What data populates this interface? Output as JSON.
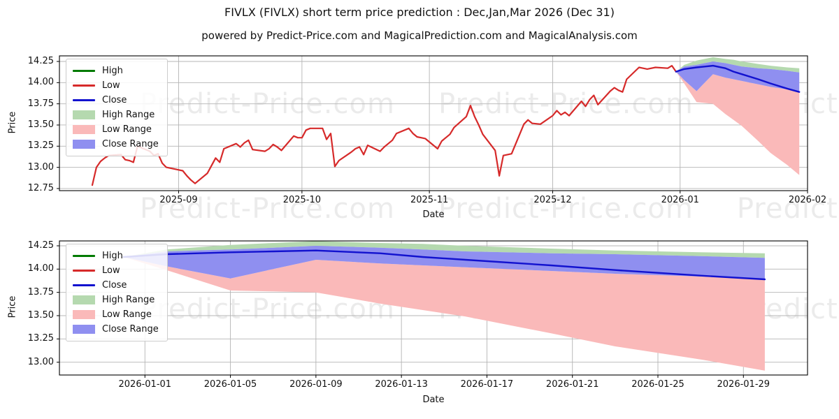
{
  "header": {
    "title": "FIVLX (FIVLX) short term price prediction : Dec,Jan,Mar 2026 (Dec 31)",
    "subtitle": "powered by Predict-Price.com and MagicalPrediction.com and MagicalAnalysis.com"
  },
  "watermark": {
    "text": "Predict-Price.com"
  },
  "colors": {
    "high_line": "#007a00",
    "low_line": "#d62a2a",
    "close_line": "#1212cf",
    "high_range": "#b5d9af",
    "low_range": "#fab9b9",
    "close_range": "#8f8ff0",
    "grid": "#b4b4b4",
    "frame": "#000000"
  },
  "legend": {
    "items": [
      {
        "label": "High",
        "kind": "line",
        "color": "#007a00"
      },
      {
        "label": "Low",
        "kind": "line",
        "color": "#d62a2a"
      },
      {
        "label": "Close",
        "kind": "line",
        "color": "#1212cf"
      },
      {
        "label": "High Range",
        "kind": "patch",
        "color": "#b5d9af"
      },
      {
        "label": "Low Range",
        "kind": "patch",
        "color": "#fab9b9"
      },
      {
        "label": "Close Range",
        "kind": "patch",
        "color": "#8f8ff0"
      }
    ]
  },
  "chart_data": [
    {
      "id": "overview",
      "type": "line",
      "xlabel": "Date",
      "ylabel": "Price",
      "grid": true,
      "legend_position": "upper left",
      "xlim": [
        "2025-08-03",
        "2026-02-01"
      ],
      "ylim": [
        12.725,
        14.316
      ],
      "x_ticks": [
        {
          "pos": "2025-09-01",
          "label": "2025-09"
        },
        {
          "pos": "2025-10-01",
          "label": "2025-10"
        },
        {
          "pos": "2025-11-01",
          "label": "2025-11"
        },
        {
          "pos": "2025-12-01",
          "label": "2025-12"
        },
        {
          "pos": "2026-01-01",
          "label": "2026-01"
        },
        {
          "pos": "2026-02-01",
          "label": "2026-02"
        }
      ],
      "y_ticks": [
        12.75,
        13.0,
        13.25,
        13.5,
        13.75,
        14.0,
        14.25
      ],
      "series": [
        {
          "name": "Low",
          "color": "#d62a2a",
          "width": 2.2,
          "dates": [
            "2025-08-11",
            "2025-08-12",
            "2025-08-13",
            "2025-08-14",
            "2025-08-15",
            "2025-08-18",
            "2025-08-19",
            "2025-08-20",
            "2025-08-21",
            "2025-08-22",
            "2025-08-25",
            "2025-08-26",
            "2025-08-27",
            "2025-08-28",
            "2025-08-29",
            "2025-09-02",
            "2025-09-03",
            "2025-09-04",
            "2025-09-05",
            "2025-09-08",
            "2025-09-09",
            "2025-09-10",
            "2025-09-11",
            "2025-09-12",
            "2025-09-15",
            "2025-09-16",
            "2025-09-17",
            "2025-09-18",
            "2025-09-19",
            "2025-09-22",
            "2025-09-23",
            "2025-09-24",
            "2025-09-25",
            "2025-09-26",
            "2025-09-29",
            "2025-09-30",
            "2025-10-01",
            "2025-10-02",
            "2025-10-03",
            "2025-10-06",
            "2025-10-07",
            "2025-10-08",
            "2025-10-09",
            "2025-10-10",
            "2025-10-13",
            "2025-10-14",
            "2025-10-15",
            "2025-10-16",
            "2025-10-17",
            "2025-10-20",
            "2025-10-21",
            "2025-10-22",
            "2025-10-23",
            "2025-10-24",
            "2025-10-27",
            "2025-10-28",
            "2025-10-29",
            "2025-10-30",
            "2025-10-31",
            "2025-11-03",
            "2025-11-04",
            "2025-11-05",
            "2025-11-06",
            "2025-11-07",
            "2025-11-10",
            "2025-11-11",
            "2025-11-12",
            "2025-11-13",
            "2025-11-14",
            "2025-11-17",
            "2025-11-18",
            "2025-11-19",
            "2025-11-20",
            "2025-11-21",
            "2025-11-24",
            "2025-11-25",
            "2025-11-26",
            "2025-11-28",
            "2025-12-01",
            "2025-12-02",
            "2025-12-03",
            "2025-12-04",
            "2025-12-05",
            "2025-12-08",
            "2025-12-09",
            "2025-12-10",
            "2025-12-11",
            "2025-12-12",
            "2025-12-15",
            "2025-12-16",
            "2025-12-17",
            "2025-12-18",
            "2025-12-19",
            "2025-12-22",
            "2025-12-23",
            "2025-12-24",
            "2025-12-26",
            "2025-12-29",
            "2025-12-30",
            "2025-12-31"
          ],
          "values": [
            12.79,
            13.0,
            13.07,
            13.11,
            13.14,
            13.15,
            13.09,
            13.08,
            13.06,
            13.25,
            13.19,
            13.14,
            13.16,
            13.05,
            13.0,
            12.96,
            12.9,
            12.85,
            12.81,
            12.93,
            13.02,
            13.11,
            13.06,
            13.22,
            13.28,
            13.24,
            13.29,
            13.32,
            13.21,
            13.19,
            13.22,
            13.27,
            13.24,
            13.2,
            13.37,
            13.35,
            13.35,
            13.44,
            13.46,
            13.46,
            13.33,
            13.4,
            13.01,
            13.08,
            13.18,
            13.22,
            13.24,
            13.15,
            13.26,
            13.19,
            13.24,
            13.28,
            13.32,
            13.4,
            13.46,
            13.4,
            13.36,
            13.35,
            13.34,
            13.22,
            13.31,
            13.35,
            13.39,
            13.47,
            13.6,
            13.73,
            13.6,
            13.5,
            13.39,
            13.2,
            12.9,
            13.14,
            13.15,
            13.16,
            13.51,
            13.56,
            13.52,
            13.51,
            13.61,
            13.67,
            13.62,
            13.65,
            13.61,
            13.78,
            13.72,
            13.8,
            13.85,
            13.74,
            13.9,
            13.94,
            13.91,
            13.89,
            14.04,
            14.18,
            14.17,
            14.16,
            14.18,
            14.17,
            14.2,
            14.13
          ]
        },
        {
          "name": "Close",
          "color": "#1212cf",
          "width": 2.4,
          "dates": [
            "2025-12-31",
            "2026-01-02",
            "2026-01-05",
            "2026-01-07",
            "2026-01-09",
            "2026-01-12",
            "2026-01-14",
            "2026-01-16",
            "2026-01-20",
            "2026-01-23",
            "2026-01-27",
            "2026-01-30"
          ],
          "values": [
            14.13,
            14.16,
            14.18,
            14.19,
            14.2,
            14.17,
            14.13,
            14.1,
            14.04,
            13.99,
            13.93,
            13.89
          ]
        }
      ],
      "bands": [
        {
          "name": "High Range",
          "color": "#b5d9af",
          "dates": [
            "2025-12-31",
            "2026-01-02",
            "2026-01-05",
            "2026-01-07",
            "2026-01-09",
            "2026-01-12",
            "2026-01-14",
            "2026-01-16",
            "2026-01-20",
            "2026-01-23",
            "2026-01-27",
            "2026-01-30"
          ],
          "upper": [
            14.13,
            14.21,
            14.26,
            14.28,
            14.3,
            14.28,
            14.27,
            14.25,
            14.22,
            14.2,
            14.18,
            14.17
          ],
          "lower": [
            14.13,
            14.19,
            14.21,
            14.23,
            14.25,
            14.23,
            14.21,
            14.19,
            14.17,
            14.16,
            14.14,
            14.12
          ]
        },
        {
          "name": "Low Range",
          "color": "#fab9b9",
          "dates": [
            "2025-12-31",
            "2026-01-02",
            "2026-01-05",
            "2026-01-07",
            "2026-01-09",
            "2026-01-12",
            "2026-01-14",
            "2026-01-16",
            "2026-01-20",
            "2026-01-23",
            "2026-01-27",
            "2026-01-30"
          ],
          "upper": [
            14.13,
            14.03,
            13.9,
            14.0,
            14.1,
            14.06,
            14.04,
            14.02,
            13.98,
            13.95,
            13.92,
            13.89
          ],
          "lower": [
            14.13,
            13.99,
            13.77,
            13.76,
            13.75,
            13.63,
            13.56,
            13.49,
            13.31,
            13.17,
            13.03,
            12.91
          ]
        },
        {
          "name": "Close Range",
          "color": "#8f8ff0",
          "dates": [
            "2025-12-31",
            "2026-01-02",
            "2026-01-05",
            "2026-01-07",
            "2026-01-09",
            "2026-01-12",
            "2026-01-14",
            "2026-01-16",
            "2026-01-20",
            "2026-01-23",
            "2026-01-27",
            "2026-01-30"
          ],
          "upper": [
            14.13,
            14.19,
            14.21,
            14.23,
            14.25,
            14.23,
            14.21,
            14.19,
            14.17,
            14.16,
            14.14,
            14.12
          ],
          "lower": [
            14.13,
            14.03,
            13.9,
            14.0,
            14.1,
            14.06,
            14.04,
            14.02,
            13.98,
            13.95,
            13.92,
            13.89
          ]
        }
      ]
    },
    {
      "id": "forecast-detail",
      "type": "line",
      "xlabel": "Date",
      "ylabel": "Price",
      "grid": true,
      "legend_position": "upper left",
      "xlim": [
        "2025-12-28",
        "2026-02-01"
      ],
      "ylim": [
        12.8625,
        14.3025
      ],
      "x_ticks": [
        {
          "pos": "2026-01-01",
          "label": "2026-01-01"
        },
        {
          "pos": "2026-01-05",
          "label": "2026-01-05"
        },
        {
          "pos": "2026-01-09",
          "label": "2026-01-09"
        },
        {
          "pos": "2026-01-13",
          "label": "2026-01-13"
        },
        {
          "pos": "2026-01-17",
          "label": "2026-01-17"
        },
        {
          "pos": "2026-01-21",
          "label": "2026-01-21"
        },
        {
          "pos": "2026-01-25",
          "label": "2026-01-25"
        },
        {
          "pos": "2026-01-29",
          "label": "2026-01-29"
        }
      ],
      "y_ticks": [
        13.0,
        13.25,
        13.5,
        13.75,
        14.0,
        14.25
      ],
      "series": [
        {
          "name": "Close",
          "color": "#1212cf",
          "width": 2.4,
          "dates": [
            "2025-12-31",
            "2026-01-02",
            "2026-01-05",
            "2026-01-07",
            "2026-01-09",
            "2026-01-12",
            "2026-01-14",
            "2026-01-16",
            "2026-01-20",
            "2026-01-23",
            "2026-01-27",
            "2026-01-30"
          ],
          "values": [
            14.13,
            14.16,
            14.18,
            14.19,
            14.2,
            14.17,
            14.13,
            14.1,
            14.04,
            13.99,
            13.93,
            13.89
          ]
        }
      ],
      "bands": [
        {
          "name": "High Range",
          "color": "#b5d9af",
          "dates": [
            "2025-12-31",
            "2026-01-02",
            "2026-01-05",
            "2026-01-07",
            "2026-01-09",
            "2026-01-12",
            "2026-01-14",
            "2026-01-16",
            "2026-01-20",
            "2026-01-23",
            "2026-01-27",
            "2026-01-30"
          ],
          "upper": [
            14.13,
            14.21,
            14.26,
            14.28,
            14.3,
            14.28,
            14.27,
            14.25,
            14.22,
            14.2,
            14.18,
            14.17
          ],
          "lower": [
            14.13,
            14.19,
            14.21,
            14.23,
            14.25,
            14.23,
            14.21,
            14.19,
            14.17,
            14.16,
            14.14,
            14.12
          ]
        },
        {
          "name": "Low Range",
          "color": "#fab9b9",
          "dates": [
            "2025-12-31",
            "2026-01-02",
            "2026-01-05",
            "2026-01-07",
            "2026-01-09",
            "2026-01-12",
            "2026-01-14",
            "2026-01-16",
            "2026-01-20",
            "2026-01-23",
            "2026-01-27",
            "2026-01-30"
          ],
          "upper": [
            14.13,
            14.03,
            13.9,
            14.0,
            14.1,
            14.06,
            14.04,
            14.02,
            13.98,
            13.95,
            13.92,
            13.89
          ],
          "lower": [
            14.13,
            13.99,
            13.77,
            13.76,
            13.75,
            13.63,
            13.56,
            13.49,
            13.31,
            13.17,
            13.03,
            12.91
          ]
        },
        {
          "name": "Close Range",
          "color": "#8f8ff0",
          "dates": [
            "2025-12-31",
            "2026-01-02",
            "2026-01-05",
            "2026-01-07",
            "2026-01-09",
            "2026-01-12",
            "2026-01-14",
            "2026-01-16",
            "2026-01-20",
            "2026-01-23",
            "2026-01-27",
            "2026-01-30"
          ],
          "upper": [
            14.13,
            14.19,
            14.21,
            14.23,
            14.25,
            14.23,
            14.21,
            14.19,
            14.17,
            14.16,
            14.14,
            14.12
          ],
          "lower": [
            14.13,
            14.03,
            13.9,
            14.0,
            14.1,
            14.06,
            14.04,
            14.02,
            13.98,
            13.95,
            13.92,
            13.89
          ]
        }
      ]
    }
  ]
}
